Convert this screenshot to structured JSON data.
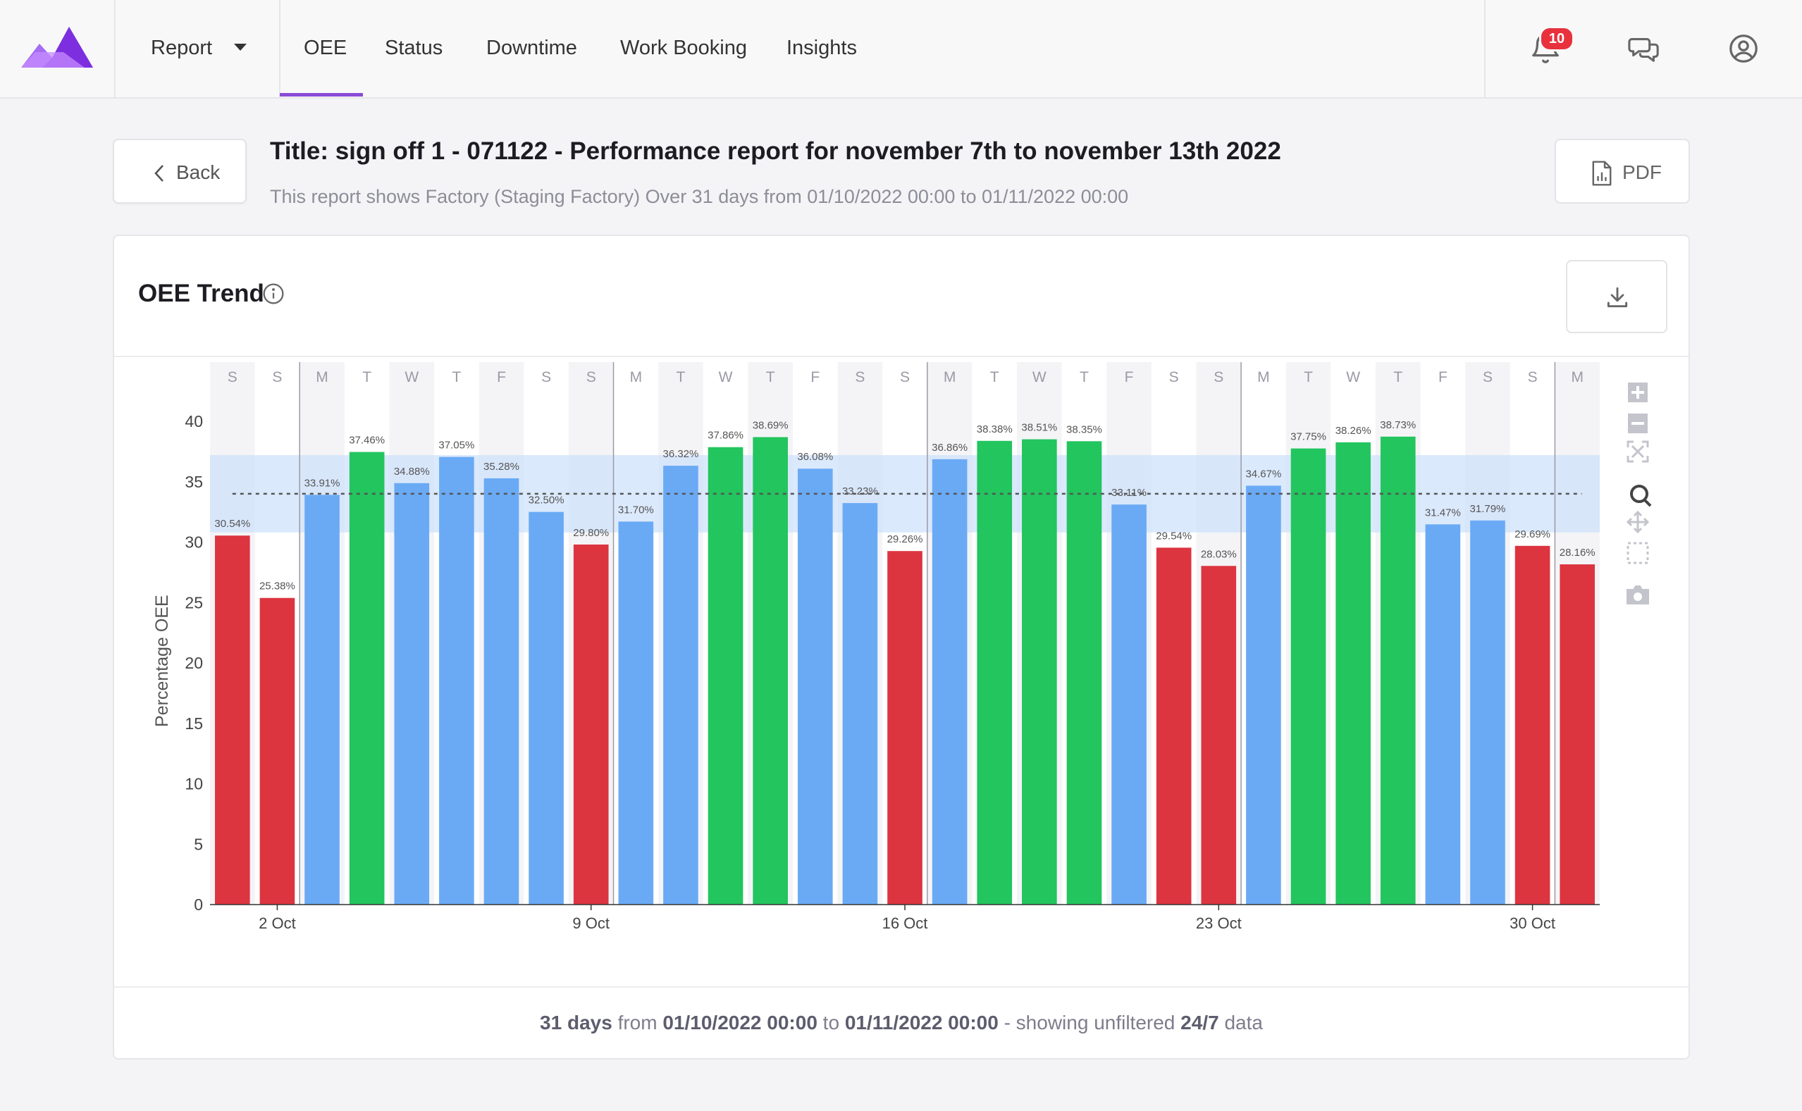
{
  "nav": {
    "report_label": "Report",
    "tabs": [
      "OEE",
      "Status",
      "Downtime",
      "Work Booking",
      "Insights"
    ],
    "active_tab": "OEE",
    "notification_count": "10"
  },
  "header": {
    "back_label": "Back",
    "title": "Title: sign off 1 - 071122 - Performance report for november 7th to november 13th 2022",
    "subtitle": "This report shows Factory (Staging Factory) Over 31 days from 01/10/2022 00:00 to 01/11/2022 00:00",
    "pdf_label": "PDF"
  },
  "card": {
    "title": "OEE Trend",
    "footer": {
      "days": "31 days",
      "from_word": "from",
      "start": "01/10/2022 00:00",
      "to_word": "to",
      "end": "01/11/2022 00:00",
      "mid": "- showing unfiltered",
      "mode": "24/7",
      "tail": "data"
    }
  },
  "colors": {
    "red": "#dc3540",
    "blue": "#6aaaf5",
    "green": "#22c55e",
    "accent": "#8a4bd6",
    "band": "#cfe2fb"
  },
  "chart_data": {
    "type": "bar",
    "ylabel": "Percentage OEE",
    "ylim": [
      0,
      45
    ],
    "yticks": [
      0,
      5,
      10,
      15,
      20,
      25,
      30,
      35,
      40
    ],
    "day_letters": [
      "S",
      "S",
      "M",
      "T",
      "W",
      "T",
      "F",
      "S",
      "S",
      "M",
      "T",
      "W",
      "T",
      "F",
      "S",
      "S",
      "M",
      "T",
      "W",
      "T",
      "F",
      "S",
      "S",
      "M",
      "T",
      "W",
      "T",
      "F",
      "S",
      "S",
      "M"
    ],
    "x_tick_labels": [
      {
        "index": 1,
        "label": "2 Oct"
      },
      {
        "index": 8,
        "label": "9 Oct"
      },
      {
        "index": 15,
        "label": "16 Oct"
      },
      {
        "index": 22,
        "label": "23 Oct"
      },
      {
        "index": 29,
        "label": "30 Oct"
      }
    ],
    "week_start_indices": [
      2,
      9,
      16,
      23,
      30
    ],
    "values": [
      30.54,
      25.38,
      33.91,
      37.46,
      34.88,
      37.05,
      35.28,
      32.5,
      29.8,
      31.7,
      36.32,
      37.86,
      38.69,
      36.08,
      33.23,
      29.26,
      36.86,
      38.38,
      38.51,
      38.35,
      33.11,
      29.54,
      28.03,
      34.67,
      37.75,
      38.26,
      38.73,
      31.47,
      31.79,
      29.69,
      28.16
    ],
    "labels": [
      "30.54%",
      "25.38%",
      "33.91%",
      "37.46%",
      "34.88%",
      "37.05%",
      "35.28%",
      "32.50%",
      "29.80%",
      "31.70%",
      "36.32%",
      "37.86%",
      "38.69%",
      "36.08%",
      "33.23%",
      "29.26%",
      "36.86%",
      "38.38%",
      "38.51%",
      "38.35%",
      "33.11%",
      "29.54%",
      "28.03%",
      "34.67%",
      "37.75%",
      "38.26%",
      "38.73%",
      "31.47%",
      "31.79%",
      "29.69%",
      "28.16%"
    ],
    "bar_colors": [
      "red",
      "red",
      "blue",
      "green",
      "blue",
      "blue",
      "blue",
      "blue",
      "red",
      "blue",
      "blue",
      "green",
      "green",
      "blue",
      "blue",
      "red",
      "blue",
      "green",
      "green",
      "green",
      "blue",
      "red",
      "red",
      "blue",
      "green",
      "green",
      "green",
      "blue",
      "blue",
      "red",
      "red"
    ],
    "average_line": 34,
    "band": [
      30.8,
      37.2
    ],
    "grid": false
  }
}
